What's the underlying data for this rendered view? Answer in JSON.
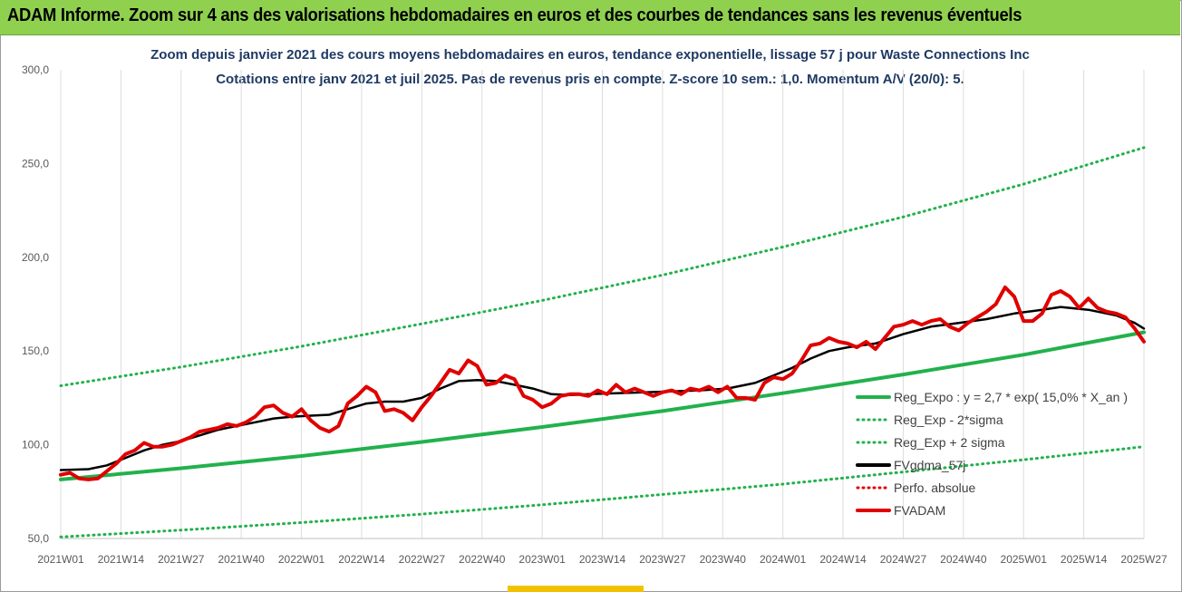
{
  "banner": {
    "text": "ADAM Informe. Zoom sur 4 ans des valorisations hebdomadaires en euros et des courbes de tendances sans les revenus éventuels"
  },
  "chart_data": {
    "type": "line",
    "title": "Zoom depuis janvier 2021 des cours moyens hebdomadaires en euros, tendance exponentielle, lissage 57 j pour Waste Connections Inc",
    "subtitle": "Cotations entre janv 2021 et juil 2025. Pas de revenus pris en compte. Z-score 10 sem.: 1,0. Momentum A/V (20/0): 5.",
    "xlabel": "",
    "ylabel": "",
    "ylim": [
      50,
      300
    ],
    "yticks": [
      "50,0",
      "100,0",
      "150,0",
      "200,0",
      "250,0",
      "300,0"
    ],
    "x_tick_labels": [
      "2021W01",
      "2021W14",
      "2021W27",
      "2021W40",
      "2022W01",
      "2022W14",
      "2022W27",
      "2022W40",
      "2023W01",
      "2023W14",
      "2023W27",
      "2023W40",
      "2024W01",
      "2024W14",
      "2024W27",
      "2024W40",
      "2025W01",
      "2025W14",
      "2025W27"
    ],
    "x_tick_weeks": [
      0,
      13,
      26,
      39,
      52,
      65,
      78,
      91,
      104,
      117,
      130,
      143,
      156,
      169,
      182,
      195,
      208,
      221,
      234
    ],
    "grid": "vertical",
    "legend_position": "right",
    "legend": [
      "Reg_Expo : y = 2,7 * exp( 15,0% *  X_an )",
      "Reg_Exp - 2*sigma",
      "Reg_Exp + 2 sigma",
      "FVgdma_57j",
      "Perfo. absolue",
      "FVADAM"
    ],
    "series": [
      {
        "name": "Reg_Expo : y = 2,7 * exp( 15,0% *  X_an )",
        "color": "#22b14c",
        "style": "solid",
        "points": [
          [
            0,
            81.5
          ],
          [
            26,
            87.5
          ],
          [
            52,
            94.0
          ],
          [
            78,
            101.5
          ],
          [
            104,
            109.5
          ],
          [
            130,
            118.0
          ],
          [
            156,
            127.5
          ],
          [
            182,
            137.5
          ],
          [
            208,
            148.0
          ],
          [
            234,
            160.0
          ]
        ]
      },
      {
        "name": "Reg_Exp - 2*sigma",
        "color": "#22b14c",
        "style": "dotted",
        "points": [
          [
            0,
            50.8
          ],
          [
            26,
            54.5
          ],
          [
            52,
            58.5
          ],
          [
            78,
            63.0
          ],
          [
            104,
            68.0
          ],
          [
            130,
            73.5
          ],
          [
            156,
            79.0
          ],
          [
            182,
            85.5
          ],
          [
            208,
            92.0
          ],
          [
            234,
            99.0
          ]
        ]
      },
      {
        "name": "Reg_Exp + 2 sigma",
        "color": "#22b14c",
        "style": "dotted",
        "points": [
          [
            0,
            131.5
          ],
          [
            26,
            141.5
          ],
          [
            52,
            152.5
          ],
          [
            78,
            164.5
          ],
          [
            104,
            177.0
          ],
          [
            130,
            190.5
          ],
          [
            156,
            205.5
          ],
          [
            182,
            221.5
          ],
          [
            208,
            239.0
          ],
          [
            234,
            258.5
          ]
        ]
      },
      {
        "name": "FVgdma_57j",
        "color": "#000000",
        "style": "solid",
        "points": [
          [
            0,
            86.5
          ],
          [
            6,
            87
          ],
          [
            10,
            89
          ],
          [
            14,
            93
          ],
          [
            18,
            97
          ],
          [
            22,
            100
          ],
          [
            26,
            102
          ],
          [
            30,
            105
          ],
          [
            34,
            108
          ],
          [
            38,
            110
          ],
          [
            42,
            112
          ],
          [
            46,
            114
          ],
          [
            50,
            115
          ],
          [
            54,
            115.5
          ],
          [
            58,
            116
          ],
          [
            62,
            119
          ],
          [
            66,
            122
          ],
          [
            70,
            123
          ],
          [
            74,
            123
          ],
          [
            78,
            125
          ],
          [
            82,
            130
          ],
          [
            86,
            134
          ],
          [
            90,
            134.5
          ],
          [
            94,
            134
          ],
          [
            98,
            132
          ],
          [
            102,
            130
          ],
          [
            106,
            127
          ],
          [
            110,
            126.5
          ],
          [
            114,
            127
          ],
          [
            120,
            127.5
          ],
          [
            126,
            128
          ],
          [
            132,
            128.5
          ],
          [
            138,
            129
          ],
          [
            144,
            130
          ],
          [
            150,
            133
          ],
          [
            154,
            137
          ],
          [
            158,
            141
          ],
          [
            162,
            146
          ],
          [
            166,
            150
          ],
          [
            170,
            152
          ],
          [
            176,
            154
          ],
          [
            182,
            159
          ],
          [
            188,
            163
          ],
          [
            194,
            165
          ],
          [
            200,
            167
          ],
          [
            206,
            170
          ],
          [
            212,
            172
          ],
          [
            216,
            173.5
          ],
          [
            222,
            172
          ],
          [
            228,
            169
          ],
          [
            232,
            165
          ],
          [
            234,
            162
          ]
        ]
      },
      {
        "name": "Perfo. absolue",
        "color": "#e00000",
        "style": "dotted",
        "points": []
      },
      {
        "name": "FVADAM",
        "color": "#e00000",
        "style": "solid",
        "points": [
          [
            0,
            84
          ],
          [
            2,
            85
          ],
          [
            4,
            82
          ],
          [
            6,
            81.5
          ],
          [
            8,
            82
          ],
          [
            10,
            86
          ],
          [
            12,
            90
          ],
          [
            14,
            95
          ],
          [
            16,
            97
          ],
          [
            18,
            101
          ],
          [
            20,
            99
          ],
          [
            22,
            99
          ],
          [
            24,
            100
          ],
          [
            26,
            102
          ],
          [
            28,
            104
          ],
          [
            30,
            107
          ],
          [
            32,
            108
          ],
          [
            34,
            109
          ],
          [
            36,
            111
          ],
          [
            38,
            110
          ],
          [
            40,
            112
          ],
          [
            42,
            115
          ],
          [
            44,
            120
          ],
          [
            46,
            121
          ],
          [
            48,
            117
          ],
          [
            50,
            115
          ],
          [
            52,
            119
          ],
          [
            54,
            113
          ],
          [
            56,
            109
          ],
          [
            58,
            107
          ],
          [
            60,
            110
          ],
          [
            62,
            122
          ],
          [
            64,
            126
          ],
          [
            66,
            131
          ],
          [
            68,
            128
          ],
          [
            70,
            118
          ],
          [
            72,
            119
          ],
          [
            74,
            117
          ],
          [
            76,
            113
          ],
          [
            78,
            120
          ],
          [
            80,
            126
          ],
          [
            82,
            133
          ],
          [
            84,
            140
          ],
          [
            86,
            138
          ],
          [
            88,
            145
          ],
          [
            90,
            142
          ],
          [
            92,
            132
          ],
          [
            94,
            133
          ],
          [
            96,
            137
          ],
          [
            98,
            135
          ],
          [
            100,
            126
          ],
          [
            102,
            124
          ],
          [
            104,
            120
          ],
          [
            106,
            122
          ],
          [
            108,
            126
          ],
          [
            110,
            127
          ],
          [
            112,
            127
          ],
          [
            114,
            126
          ],
          [
            116,
            129
          ],
          [
            118,
            127
          ],
          [
            120,
            132
          ],
          [
            122,
            128
          ],
          [
            124,
            130
          ],
          [
            126,
            128
          ],
          [
            128,
            126
          ],
          [
            130,
            128
          ],
          [
            132,
            129
          ],
          [
            134,
            127
          ],
          [
            136,
            130
          ],
          [
            138,
            129
          ],
          [
            140,
            131
          ],
          [
            142,
            128
          ],
          [
            144,
            131
          ],
          [
            146,
            125
          ],
          [
            148,
            125
          ],
          [
            150,
            124
          ],
          [
            152,
            133
          ],
          [
            154,
            136
          ],
          [
            156,
            135
          ],
          [
            158,
            138
          ],
          [
            160,
            145
          ],
          [
            162,
            153
          ],
          [
            164,
            154
          ],
          [
            166,
            157
          ],
          [
            168,
            155
          ],
          [
            170,
            154
          ],
          [
            172,
            152
          ],
          [
            174,
            155
          ],
          [
            176,
            151
          ],
          [
            178,
            157
          ],
          [
            180,
            163
          ],
          [
            182,
            164
          ],
          [
            184,
            166
          ],
          [
            186,
            164
          ],
          [
            188,
            166
          ],
          [
            190,
            167
          ],
          [
            192,
            163
          ],
          [
            194,
            161
          ],
          [
            196,
            165
          ],
          [
            198,
            168
          ],
          [
            200,
            171
          ],
          [
            202,
            175
          ],
          [
            204,
            184
          ],
          [
            206,
            179
          ],
          [
            208,
            166
          ],
          [
            210,
            166
          ],
          [
            212,
            170
          ],
          [
            214,
            180
          ],
          [
            216,
            182
          ],
          [
            218,
            179
          ],
          [
            220,
            173
          ],
          [
            222,
            178
          ],
          [
            224,
            173
          ],
          [
            226,
            171
          ],
          [
            228,
            170
          ],
          [
            230,
            168
          ],
          [
            232,
            162
          ],
          [
            234,
            155
          ]
        ]
      }
    ]
  }
}
